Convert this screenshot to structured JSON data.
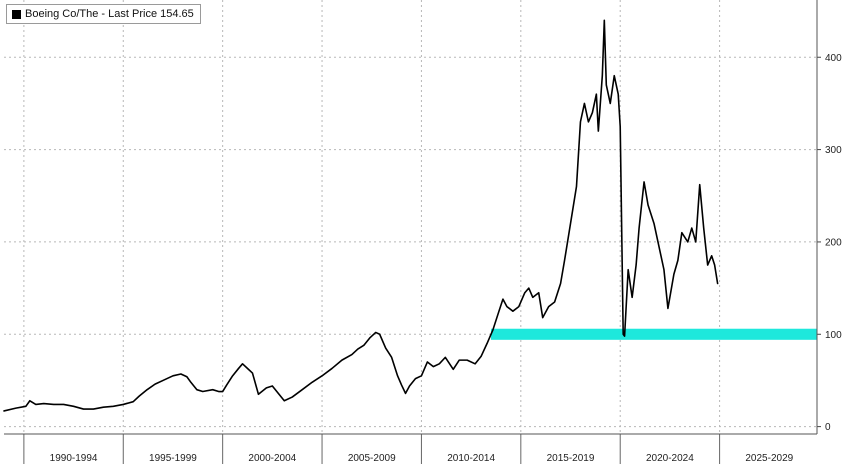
{
  "legend": {
    "series_label": "Boeing Co/The - Last Price 154.65"
  },
  "chart_data": {
    "type": "line",
    "title": "",
    "xlabel": "",
    "ylabel": "",
    "x_start": 1989.0,
    "x_end": 2029.9,
    "ylim": [
      -8,
      462
    ],
    "y_ticks": [
      0,
      100,
      200,
      300,
      400
    ],
    "x_ticks": [
      {
        "label": "1990-1994",
        "start": 1990,
        "end": 1995
      },
      {
        "label": "1995-1999",
        "start": 1995,
        "end": 2000
      },
      {
        "label": "2000-2004",
        "start": 2000,
        "end": 2005
      },
      {
        "label": "2005-2009",
        "start": 2005,
        "end": 2010
      },
      {
        "label": "2010-2014",
        "start": 2010,
        "end": 2015
      },
      {
        "label": "2015-2019",
        "start": 2015,
        "end": 2020
      },
      {
        "label": "2020-2024",
        "start": 2020,
        "end": 2025
      },
      {
        "label": "2025-2029",
        "start": 2025,
        "end": 2030
      }
    ],
    "grid": true,
    "series": [
      {
        "name": "Boeing Co/The - Last Price 154.65",
        "color": "#000000",
        "points": [
          [
            1989.0,
            17
          ],
          [
            1989.6,
            20
          ],
          [
            1990.1,
            22
          ],
          [
            1990.3,
            28
          ],
          [
            1990.6,
            24
          ],
          [
            1991.0,
            25
          ],
          [
            1991.5,
            24
          ],
          [
            1992.0,
            24
          ],
          [
            1992.5,
            22
          ],
          [
            1993.0,
            19
          ],
          [
            1993.5,
            19
          ],
          [
            1994.0,
            21
          ],
          [
            1994.5,
            22
          ],
          [
            1995.0,
            24
          ],
          [
            1995.5,
            27
          ],
          [
            1995.8,
            33
          ],
          [
            1996.2,
            40
          ],
          [
            1996.6,
            46
          ],
          [
            1997.0,
            50
          ],
          [
            1997.5,
            55
          ],
          [
            1997.9,
            57
          ],
          [
            1998.2,
            54
          ],
          [
            1998.4,
            48
          ],
          [
            1998.7,
            40
          ],
          [
            1999.0,
            38
          ],
          [
            1999.5,
            40
          ],
          [
            1999.8,
            38
          ],
          [
            2000.0,
            38
          ],
          [
            2000.2,
            45
          ],
          [
            2000.5,
            55
          ],
          [
            2000.8,
            63
          ],
          [
            2001.0,
            68
          ],
          [
            2001.3,
            62
          ],
          [
            2001.5,
            58
          ],
          [
            2001.8,
            35
          ],
          [
            2002.2,
            42
          ],
          [
            2002.5,
            44
          ],
          [
            2002.8,
            36
          ],
          [
            2003.1,
            28
          ],
          [
            2003.5,
            32
          ],
          [
            2004.0,
            40
          ],
          [
            2004.5,
            48
          ],
          [
            2005.0,
            55
          ],
          [
            2005.5,
            63
          ],
          [
            2006.0,
            72
          ],
          [
            2006.5,
            78
          ],
          [
            2006.8,
            84
          ],
          [
            2007.1,
            88
          ],
          [
            2007.4,
            96
          ],
          [
            2007.7,
            102
          ],
          [
            2007.9,
            100
          ],
          [
            2008.2,
            85
          ],
          [
            2008.5,
            75
          ],
          [
            2008.8,
            55
          ],
          [
            2009.0,
            45
          ],
          [
            2009.2,
            36
          ],
          [
            2009.4,
            44
          ],
          [
            2009.7,
            52
          ],
          [
            2010.0,
            55
          ],
          [
            2010.3,
            70
          ],
          [
            2010.6,
            65
          ],
          [
            2010.9,
            68
          ],
          [
            2011.2,
            75
          ],
          [
            2011.6,
            62
          ],
          [
            2011.9,
            72
          ],
          [
            2012.3,
            72
          ],
          [
            2012.7,
            68
          ],
          [
            2013.0,
            76
          ],
          [
            2013.3,
            90
          ],
          [
            2013.6,
            105
          ],
          [
            2013.9,
            125
          ],
          [
            2014.1,
            138
          ],
          [
            2014.3,
            130
          ],
          [
            2014.6,
            125
          ],
          [
            2014.9,
            130
          ],
          [
            2015.2,
            145
          ],
          [
            2015.4,
            150
          ],
          [
            2015.6,
            140
          ],
          [
            2015.9,
            145
          ],
          [
            2016.1,
            118
          ],
          [
            2016.4,
            130
          ],
          [
            2016.7,
            135
          ],
          [
            2017.0,
            155
          ],
          [
            2017.2,
            180
          ],
          [
            2017.5,
            220
          ],
          [
            2017.8,
            260
          ],
          [
            2018.0,
            330
          ],
          [
            2018.2,
            350
          ],
          [
            2018.4,
            330
          ],
          [
            2018.6,
            340
          ],
          [
            2018.8,
            360
          ],
          [
            2018.9,
            320
          ],
          [
            2019.1,
            380
          ],
          [
            2019.2,
            440
          ],
          [
            2019.3,
            370
          ],
          [
            2019.5,
            350
          ],
          [
            2019.7,
            380
          ],
          [
            2019.9,
            360
          ],
          [
            2020.0,
            325
          ],
          [
            2020.15,
            100
          ],
          [
            2020.22,
            98
          ],
          [
            2020.4,
            170
          ],
          [
            2020.6,
            140
          ],
          [
            2020.8,
            175
          ],
          [
            2020.95,
            215
          ],
          [
            2021.2,
            265
          ],
          [
            2021.4,
            240
          ],
          [
            2021.7,
            220
          ],
          [
            2021.9,
            200
          ],
          [
            2022.2,
            170
          ],
          [
            2022.4,
            128
          ],
          [
            2022.7,
            165
          ],
          [
            2022.9,
            180
          ],
          [
            2023.1,
            210
          ],
          [
            2023.4,
            200
          ],
          [
            2023.6,
            215
          ],
          [
            2023.8,
            200
          ],
          [
            2024.0,
            262
          ],
          [
            2024.2,
            215
          ],
          [
            2024.4,
            175
          ],
          [
            2024.6,
            185
          ],
          [
            2024.75,
            175
          ],
          [
            2024.9,
            155
          ]
        ]
      }
    ],
    "highlight_band": {
      "color": "#1ee8dc",
      "x_start": 2013.5,
      "x_end": 2029.9,
      "y_low": 94,
      "y_high": 106
    }
  }
}
